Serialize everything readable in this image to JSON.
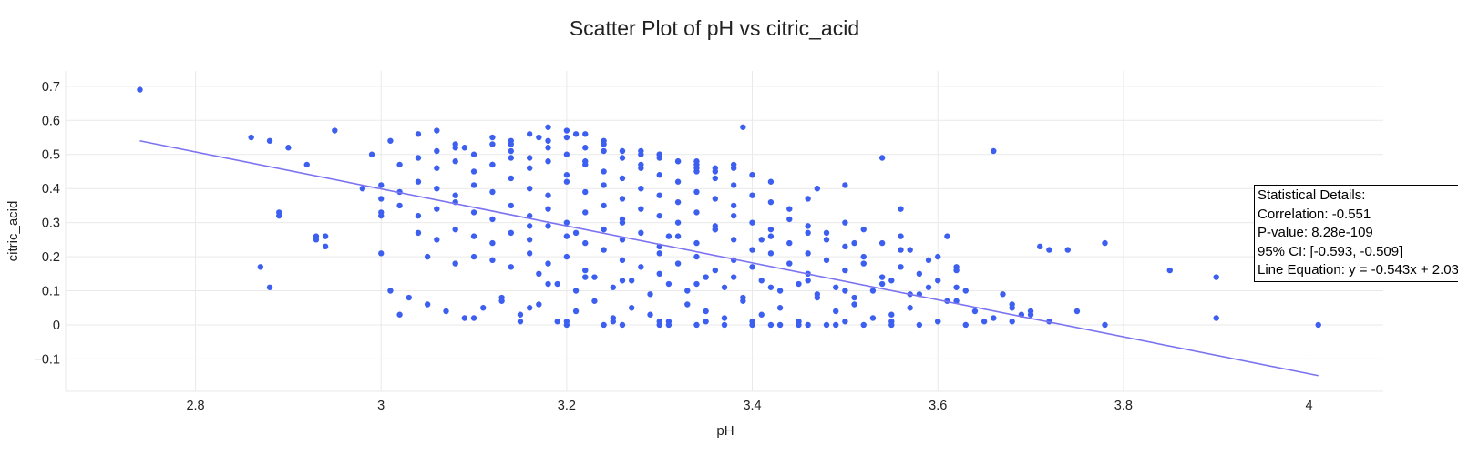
{
  "chart_data": {
    "type": "scatter",
    "title": "Scatter Plot of pH vs citric_acid",
    "xlabel": "pH",
    "ylabel": "citric_acid",
    "xlim": [
      2.66,
      4.08
    ],
    "ylim": [
      -0.195,
      0.745
    ],
    "xticks": [
      2.8,
      3.0,
      3.2,
      3.4,
      3.6,
      3.8,
      4.0
    ],
    "xtick_labels": [
      "2.8",
      "3",
      "3.2",
      "3.4",
      "3.6",
      "3.8",
      "4"
    ],
    "yticks": [
      -0.1,
      0,
      0.1,
      0.2,
      0.3,
      0.4,
      0.5,
      0.6,
      0.7
    ],
    "ytick_labels": [
      "−0.1",
      "0",
      "0.1",
      "0.2",
      "0.3",
      "0.4",
      "0.5",
      "0.6",
      "0.7"
    ],
    "grid": true,
    "marker_color": "#3d5ff0",
    "line_color": "#7b73f0",
    "regression_line": {
      "x": [
        2.74,
        4.01
      ],
      "y": [
        0.54,
        -0.149
      ]
    },
    "x": [
      2.74,
      2.86,
      2.88,
      2.87,
      2.88,
      2.89,
      2.89,
      2.9,
      2.92,
      2.93,
      2.93,
      2.94,
      2.94,
      2.95,
      2.98,
      2.99,
      3.0,
      3.0,
      3.0,
      3.01,
      3.02,
      3.04,
      3.05,
      3.06,
      3.08,
      3.09,
      3.1,
      3.12,
      3.13,
      3.14,
      3.16,
      3.17,
      3.18,
      3.2,
      3.21,
      3.24,
      3.26,
      3.3,
      3.3,
      3.31,
      3.34,
      3.37,
      3.39,
      3.4,
      3.42,
      3.43,
      3.45,
      3.46,
      3.47,
      3.48,
      3.49,
      3.5,
      3.52,
      3.54,
      3.55,
      3.56,
      3.57,
      3.58,
      3.59,
      3.6,
      3.61,
      3.62,
      3.63,
      3.66,
      3.67,
      3.68,
      3.69,
      3.7,
      3.71,
      3.72,
      3.72,
      3.74,
      3.75,
      3.78,
      3.78,
      3.85,
      3.9,
      3.9,
      4.01,
      3.01,
      3.03,
      3.05,
      3.07,
      3.09,
      3.11,
      3.13,
      3.15,
      3.17,
      3.19,
      3.21,
      3.23,
      3.25,
      3.27,
      3.29,
      3.31,
      3.33,
      3.35,
      3.37,
      3.39,
      3.41,
      3.43,
      3.45,
      3.47,
      3.49,
      3.51,
      3.53,
      3.55,
      3.57,
      3.6,
      3.62,
      3.64,
      3.66,
      3.68,
      3.7,
      3.17,
      3.19,
      3.21,
      3.23,
      3.25,
      3.27,
      3.29,
      3.31,
      3.33,
      3.35,
      3.37,
      3.39,
      3.41,
      3.43,
      3.45,
      3.47,
      3.49,
      3.51,
      3.53,
      3.55,
      3.57,
      3.59,
      3.61,
      3.63,
      3.08,
      3.1,
      3.12,
      3.14,
      3.16,
      3.18,
      3.2,
      3.22,
      3.24,
      3.26,
      3.28,
      3.3,
      3.32,
      3.34,
      3.36,
      3.38,
      3.4,
      3.42,
      3.44,
      3.46,
      3.48,
      3.5,
      3.52,
      3.54,
      3.56,
      3.58,
      3.6,
      3.62,
      3.04,
      3.06,
      3.08,
      3.1,
      3.12,
      3.14,
      3.16,
      3.18,
      3.2,
      3.22,
      3.24,
      3.26,
      3.28,
      3.3,
      3.32,
      3.34,
      3.36,
      3.38,
      3.4,
      3.42,
      3.44,
      3.46,
      3.48,
      3.5,
      3.52,
      3.54,
      3.56,
      3.0,
      3.02,
      3.04,
      3.06,
      3.08,
      3.1,
      3.12,
      3.14,
      3.16,
      3.18,
      3.2,
      3.22,
      3.24,
      3.26,
      3.28,
      3.3,
      3.32,
      3.34,
      3.36,
      3.38,
      3.4,
      3.42,
      3.44,
      3.46,
      3.48,
      3.5,
      3.52,
      3.0,
      3.02,
      3.04,
      3.06,
      3.08,
      3.1,
      3.12,
      3.14,
      3.16,
      3.18,
      3.2,
      3.22,
      3.24,
      3.26,
      3.28,
      3.3,
      3.32,
      3.34,
      3.36,
      3.38,
      3.4,
      3.42,
      3.44,
      3.46,
      3.02,
      3.04,
      3.06,
      3.08,
      3.1,
      3.12,
      3.14,
      3.16,
      3.18,
      3.2,
      3.22,
      3.24,
      3.26,
      3.28,
      3.3,
      3.32,
      3.34,
      3.36,
      3.38,
      3.4,
      3.42,
      3.06,
      3.08,
      3.1,
      3.12,
      3.14,
      3.16,
      3.18,
      3.2,
      3.22,
      3.24,
      3.26,
      3.28,
      3.3,
      3.32,
      3.34,
      3.36,
      3.38,
      3.4,
      3.12,
      3.14,
      3.16,
      3.18,
      3.2,
      3.22,
      3.24,
      3.26,
      3.28,
      3.3,
      3.32,
      3.34,
      3.36,
      3.2,
      3.22,
      3.24,
      3.28,
      3.3,
      3.34,
      3.38,
      3.15,
      3.2,
      3.25,
      3.3,
      3.35,
      3.4,
      3.45,
      3.5,
      3.55,
      3.6,
      3.65,
      3.68,
      3.18,
      3.22,
      3.26,
      3.3,
      3.34,
      3.38,
      3.42,
      3.46,
      3.5,
      3.54,
      3.58,
      3.62,
      3.16,
      3.21,
      3.26,
      3.31,
      3.36,
      3.41,
      3.46,
      3.51,
      3.56
    ],
    "y": [
      0.69,
      0.55,
      0.54,
      0.17,
      0.11,
      0.33,
      0.32,
      0.52,
      0.47,
      0.25,
      0.26,
      0.26,
      0.23,
      0.57,
      0.4,
      0.5,
      0.21,
      0.32,
      0.37,
      0.54,
      0.03,
      0.56,
      0.2,
      0.57,
      0.53,
      0.52,
      0.02,
      0.47,
      0.07,
      0.54,
      0.05,
      0.55,
      0.58,
      0.0,
      0.56,
      0.0,
      0.0,
      0.5,
      0.0,
      0.0,
      0.0,
      0.0,
      0.58,
      0.0,
      0.0,
      0.0,
      0.0,
      0.0,
      0.4,
      0.0,
      0.0,
      0.41,
      0.0,
      0.49,
      0.0,
      0.34,
      0.22,
      0.0,
      0.19,
      0.2,
      0.26,
      0.17,
      0.0,
      0.51,
      0.09,
      0.05,
      0.03,
      0.04,
      0.23,
      0.22,
      0.01,
      0.22,
      0.04,
      0.24,
      0.0,
      0.16,
      0.14,
      0.02,
      0.0,
      0.1,
      0.08,
      0.06,
      0.04,
      0.02,
      0.05,
      0.08,
      0.03,
      0.06,
      0.01,
      0.04,
      0.07,
      0.02,
      0.05,
      0.03,
      0.01,
      0.06,
      0.04,
      0.02,
      0.07,
      0.03,
      0.05,
      0.01,
      0.08,
      0.04,
      0.06,
      0.02,
      0.03,
      0.05,
      0.01,
      0.07,
      0.04,
      0.02,
      0.06,
      0.03,
      0.15,
      0.12,
      0.1,
      0.14,
      0.11,
      0.13,
      0.09,
      0.12,
      0.1,
      0.14,
      0.11,
      0.08,
      0.13,
      0.1,
      0.12,
      0.09,
      0.11,
      0.08,
      0.1,
      0.13,
      0.09,
      0.11,
      0.07,
      0.1,
      0.18,
      0.2,
      0.19,
      0.17,
      0.21,
      0.18,
      0.2,
      0.16,
      0.22,
      0.19,
      0.17,
      0.21,
      0.18,
      0.2,
      0.16,
      0.19,
      0.17,
      0.21,
      0.18,
      0.15,
      0.19,
      0.16,
      0.18,
      0.14,
      0.17,
      0.15,
      0.13,
      0.16,
      0.27,
      0.25,
      0.28,
      0.26,
      0.24,
      0.27,
      0.25,
      0.29,
      0.26,
      0.24,
      0.28,
      0.25,
      0.27,
      0.23,
      0.26,
      0.24,
      0.28,
      0.25,
      0.22,
      0.26,
      0.24,
      0.21,
      0.25,
      0.23,
      0.2,
      0.24,
      0.22,
      0.33,
      0.35,
      0.32,
      0.34,
      0.36,
      0.33,
      0.31,
      0.35,
      0.32,
      0.34,
      0.3,
      0.33,
      0.35,
      0.31,
      0.34,
      0.32,
      0.3,
      0.33,
      0.29,
      0.32,
      0.3,
      0.28,
      0.31,
      0.29,
      0.27,
      0.3,
      0.28,
      0.41,
      0.39,
      0.42,
      0.4,
      0.38,
      0.41,
      0.39,
      0.43,
      0.4,
      0.38,
      0.42,
      0.39,
      0.41,
      0.37,
      0.4,
      0.38,
      0.36,
      0.39,
      0.37,
      0.35,
      0.38,
      0.36,
      0.34,
      0.37,
      0.47,
      0.49,
      0.46,
      0.48,
      0.45,
      0.47,
      0.49,
      0.46,
      0.48,
      0.44,
      0.47,
      0.45,
      0.43,
      0.46,
      0.44,
      0.42,
      0.45,
      0.43,
      0.41,
      0.44,
      0.42,
      0.51,
      0.52,
      0.5,
      0.53,
      0.51,
      0.49,
      0.52,
      0.5,
      0.48,
      0.51,
      0.49,
      0.47,
      0.5,
      0.48,
      0.46,
      0.45,
      0.47,
      0.44,
      0.55,
      0.53,
      0.56,
      0.54,
      0.55,
      0.52,
      0.54,
      0.51,
      0.5,
      0.49,
      0.48,
      0.47,
      0.46,
      0.57,
      0.56,
      0.53,
      0.51,
      0.5,
      0.48,
      0.46,
      0.01,
      0.01,
      0.01,
      0.01,
      0.01,
      0.01,
      0.01,
      0.01,
      0.01,
      0.01,
      0.01,
      0.01,
      0.12,
      0.14,
      0.13,
      0.15,
      0.12,
      0.14,
      0.11,
      0.13,
      0.1,
      0.12,
      0.09,
      0.11,
      0.29,
      0.27,
      0.3,
      0.26,
      0.28,
      0.25,
      0.27,
      0.24,
      0.26
    ]
  },
  "stats": {
    "heading": "Statistical Details:",
    "correlation": "Correlation: -0.551",
    "pvalue": "P-value: 8.28e-109",
    "ci": "95% CI: [-0.593, -0.509]",
    "equation": "Line Equation: y = -0.543x + 2.03"
  }
}
